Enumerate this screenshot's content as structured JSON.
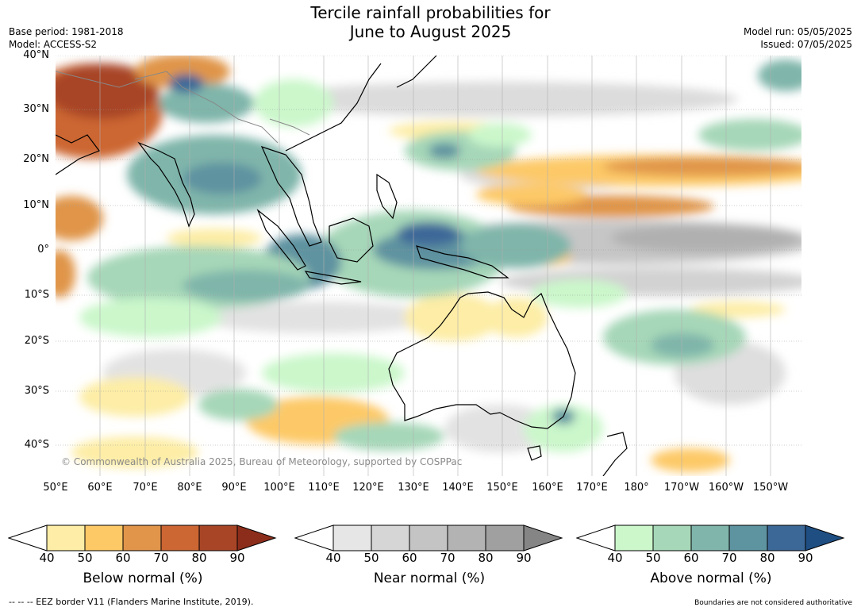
{
  "title_line1": "Tercile rainfall probabilities for",
  "title_line2": "June to August 2025",
  "base_period": "Base period: 1981-2018",
  "model": "Model: ACCESS-S2",
  "model_run": "Model run: 05/05/2025",
  "issued": "Issued: 07/05/2025",
  "copyright": "© Commonwealth of Australia 2025, Bureau of Meteorology, supported by COSPPac",
  "lat_labels": [
    "40°N",
    "30°N",
    "20°N",
    "10°N",
    "0°",
    "10°S",
    "20°S",
    "30°S",
    "40°S"
  ],
  "lon_labels": [
    "50°E",
    "60°E",
    "70°E",
    "80°E",
    "90°E",
    "100°E",
    "110°E",
    "120°E",
    "130°E",
    "140°E",
    "150°E",
    "160°E",
    "170°E",
    "180°",
    "170°W",
    "160°W",
    "150°W"
  ],
  "colorbars": [
    {
      "label": "Below normal (%)",
      "ticks": [
        "40",
        "50",
        "60",
        "70",
        "80",
        "90"
      ],
      "colors": [
        "#fdeda6",
        "#fdc967",
        "#e0954a",
        "#cc6633",
        "#a84527",
        "#8c2d1b"
      ]
    },
    {
      "label": "Near normal (%)",
      "ticks": [
        "40",
        "50",
        "60",
        "70",
        "80",
        "90"
      ],
      "colors": [
        "#e6e6e6",
        "#d6d6d6",
        "#c4c4c4",
        "#b3b3b3",
        "#a0a0a0",
        "#858585"
      ]
    },
    {
      "label": "Above normal (%)",
      "ticks": [
        "40",
        "50",
        "60",
        "70",
        "80",
        "90"
      ],
      "colors": [
        "#cbf7cb",
        "#a6d7b8",
        "#7fb5aa",
        "#5e93a0",
        "#3c6898",
        "#1e4e82"
      ]
    }
  ],
  "footer_left": "--  --  -- EEZ border V11 (Flanders Marine Institute, 2019).",
  "footer_right": "Boundaries are not considered authoritative"
}
